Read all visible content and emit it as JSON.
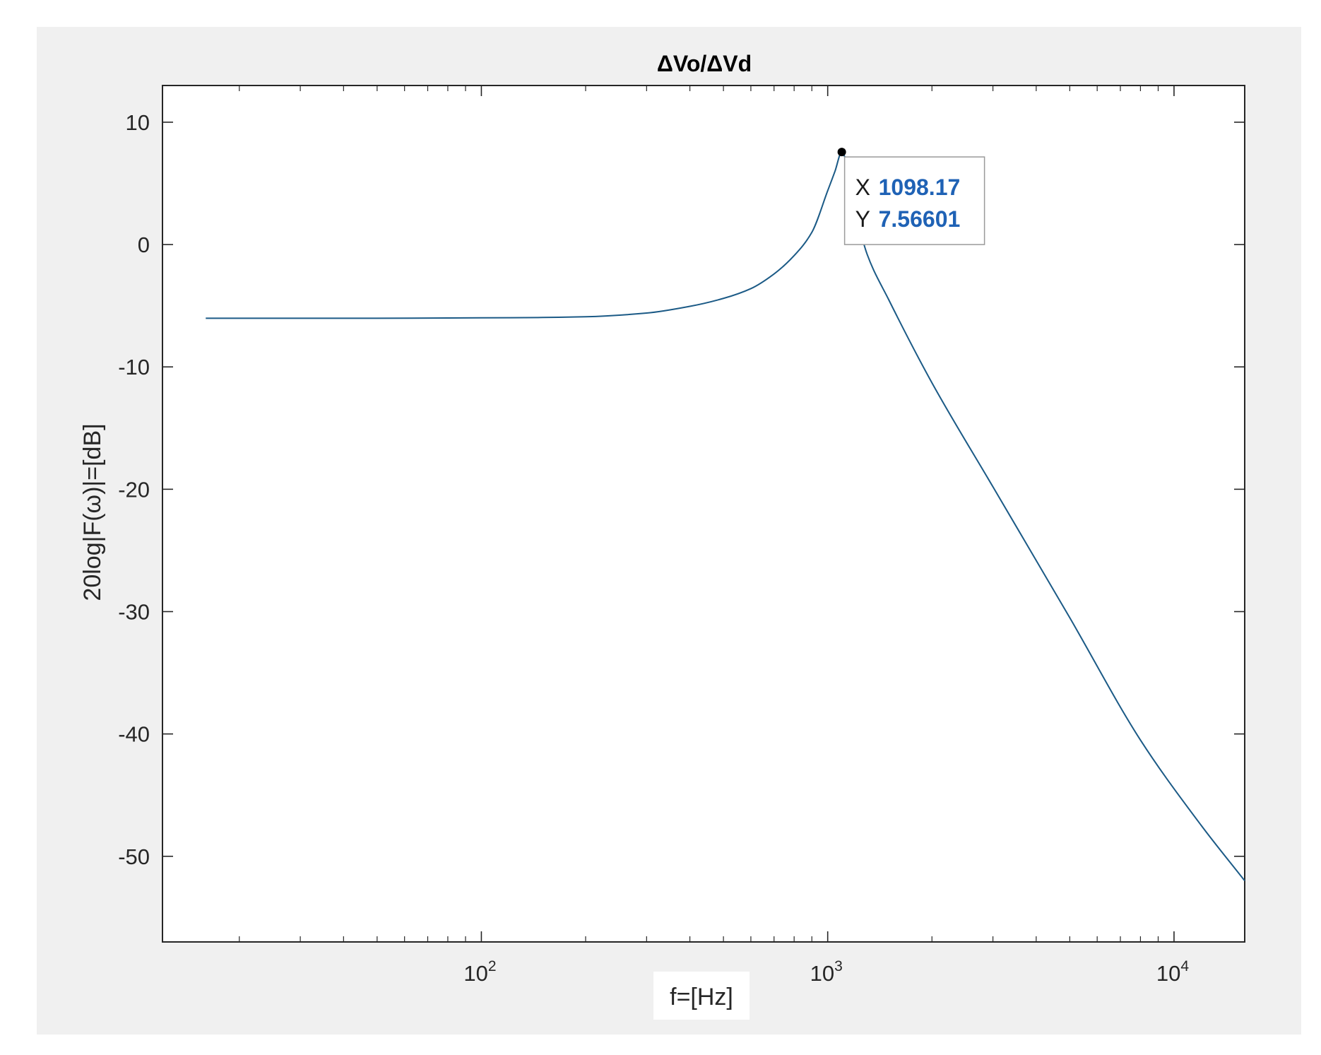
{
  "colors": {
    "figure_background": "#f0f0f0",
    "axes_background": "#ffffff",
    "line": "#1b5a86",
    "datatip_value": "#1f62b5",
    "axis": "#262626"
  },
  "chart_data": {
    "type": "line",
    "title": "ΔVo/ΔVd",
    "xlabel": "f=[Hz]",
    "ylabel": "20log|F(ω)|=[dB]",
    "xscale": "log",
    "xlim": [
      12,
      16000
    ],
    "ylim": [
      -57,
      13
    ],
    "grid": false,
    "x_ticks": [
      100,
      1000,
      10000
    ],
    "x_tick_labels": [
      {
        "base": "10",
        "exp": "2"
      },
      {
        "base": "10",
        "exp": "3"
      },
      {
        "base": "10",
        "exp": "4"
      }
    ],
    "y_ticks": [
      10,
      0,
      -10,
      -20,
      -30,
      -40,
      -50
    ],
    "y_tick_labels": [
      "10",
      "0",
      "-10",
      "-20",
      "-30",
      "-40",
      "-50"
    ],
    "series": [
      {
        "x": [
          16,
          20,
          30,
          50,
          80,
          100,
          150,
          200,
          300,
          400,
          500,
          600,
          700,
          800,
          900,
          1000,
          1050,
          1098.17,
          1150,
          1200,
          1300,
          1500,
          2000,
          3000,
          5000,
          8000,
          12000,
          16000
        ],
        "y": [
          -6.02,
          -6.02,
          -6.02,
          -6.02,
          -6.0,
          -5.99,
          -5.96,
          -5.9,
          -5.6,
          -5.05,
          -4.4,
          -3.6,
          -2.4,
          -0.9,
          1.0,
          4.4,
          6.0,
          7.56601,
          6.0,
          3.0,
          -0.8,
          -4.5,
          -11.3,
          -19.8,
          -30.5,
          -40.5,
          -47.5,
          -52
        ]
      }
    ],
    "datatip": {
      "x_label": "X",
      "x_value": "1098.17",
      "y_label": "Y",
      "y_value": "7.56601",
      "x": 1098.17,
      "y": 7.56601
    }
  }
}
